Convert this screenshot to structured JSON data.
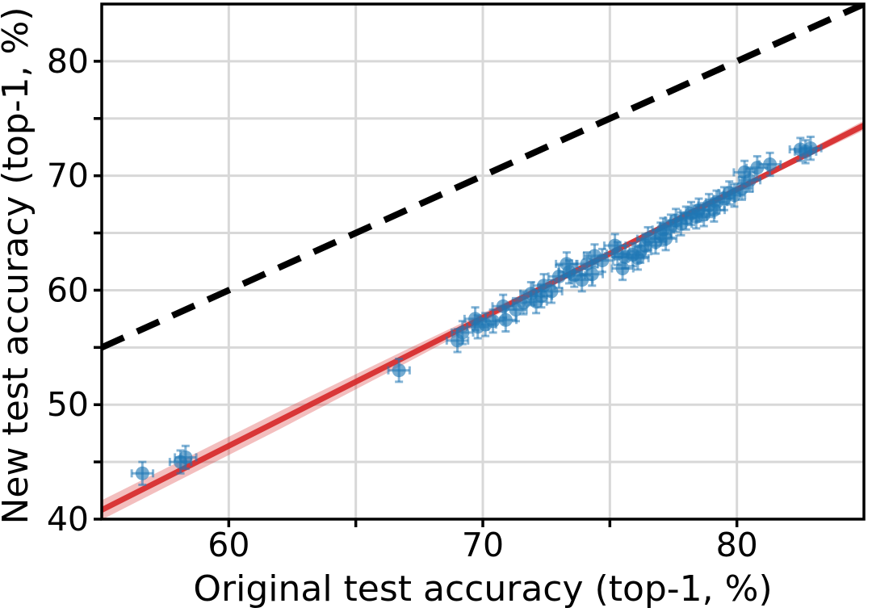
{
  "chart_data": {
    "type": "scatter",
    "title": "",
    "xlabel": "Original test accuracy (top-1, %)",
    "ylabel": "New test accuracy (top-1, %)",
    "xlim": [
      55,
      85
    ],
    "ylim": [
      40,
      85
    ],
    "xticks_labeled": [
      60,
      70,
      80
    ],
    "yticks_labeled": [
      40,
      50,
      60,
      70,
      80
    ],
    "tick_step": 5,
    "grid": true,
    "legend": "none",
    "identity_line": {
      "name": "y-equals-x-reference",
      "style": "dashed",
      "color": "#000000",
      "from": [
        55,
        55
      ],
      "to": [
        85,
        85
      ]
    },
    "fit_line": {
      "name": "linear-fit",
      "color": "#d62728",
      "slope": 1.12,
      "intercept": -20.8,
      "x_range": [
        55,
        85
      ]
    },
    "confidence_band": {
      "color": "#d62728",
      "opacity": 0.3,
      "halfwidth_points": [
        [
          55,
          0.85
        ],
        [
          62,
          0.78
        ],
        [
          67,
          0.58
        ],
        [
          71,
          0.34
        ],
        [
          74,
          0.18
        ],
        [
          78,
          0.15
        ],
        [
          81,
          0.22
        ],
        [
          85,
          0.42
        ]
      ]
    },
    "series": [
      {
        "name": "models",
        "marker_color": "#1f77b4",
        "marker_alpha": 0.62,
        "xerr": 0.42,
        "yerr": 1.0,
        "points": [
          [
            56.6,
            44.0
          ],
          [
            58.1,
            45.0
          ],
          [
            58.3,
            45.4
          ],
          [
            66.7,
            53.0
          ],
          [
            69.0,
            55.6
          ],
          [
            69.2,
            56.3
          ],
          [
            69.7,
            57.5
          ],
          [
            69.8,
            56.8
          ],
          [
            70.1,
            57.0
          ],
          [
            70.4,
            57.3
          ],
          [
            70.8,
            58.6
          ],
          [
            70.9,
            57.4
          ],
          [
            71.3,
            58.3
          ],
          [
            71.6,
            58.9
          ],
          [
            71.9,
            59.7
          ],
          [
            72.1,
            59.0
          ],
          [
            72.3,
            59.5
          ],
          [
            72.4,
            60.4
          ],
          [
            72.7,
            59.9
          ],
          [
            73.0,
            61.2
          ],
          [
            73.3,
            62.3
          ],
          [
            73.4,
            61.6
          ],
          [
            73.6,
            61.3
          ],
          [
            73.9,
            60.9
          ],
          [
            74.1,
            62.3
          ],
          [
            74.3,
            61.4
          ],
          [
            74.4,
            63.0
          ],
          [
            74.7,
            62.6
          ],
          [
            75.2,
            63.9
          ],
          [
            75.3,
            63.2
          ],
          [
            75.5,
            61.9
          ],
          [
            75.6,
            62.9
          ],
          [
            75.9,
            63.1
          ],
          [
            76.1,
            62.8
          ],
          [
            76.2,
            63.4
          ],
          [
            76.4,
            63.9
          ],
          [
            76.5,
            64.5
          ],
          [
            76.8,
            64.2
          ],
          [
            77.0,
            64.9
          ],
          [
            77.1,
            65.3
          ],
          [
            77.2,
            64.5
          ],
          [
            77.4,
            65.6
          ],
          [
            77.6,
            66.1
          ],
          [
            77.8,
            65.8
          ],
          [
            78.0,
            66.3
          ],
          [
            78.2,
            66.7
          ],
          [
            78.4,
            66.4
          ],
          [
            78.5,
            67.0
          ],
          [
            78.7,
            66.6
          ],
          [
            78.9,
            67.4
          ],
          [
            79.1,
            67.0
          ],
          [
            79.2,
            67.7
          ],
          [
            79.5,
            68.0
          ],
          [
            79.7,
            68.5
          ],
          [
            79.9,
            68.3
          ],
          [
            80.2,
            68.9
          ],
          [
            80.3,
            70.3
          ],
          [
            80.5,
            69.6
          ],
          [
            80.8,
            70.7
          ],
          [
            81.3,
            71.0
          ],
          [
            82.5,
            72.3
          ],
          [
            82.7,
            72.1
          ],
          [
            82.9,
            72.4
          ]
        ]
      }
    ],
    "colors": {
      "grid": "#d8d8d8",
      "spine": "#000000",
      "background": "#ffffff",
      "marker_blue": "#1f77b4",
      "fit_red": "#d62728"
    }
  }
}
